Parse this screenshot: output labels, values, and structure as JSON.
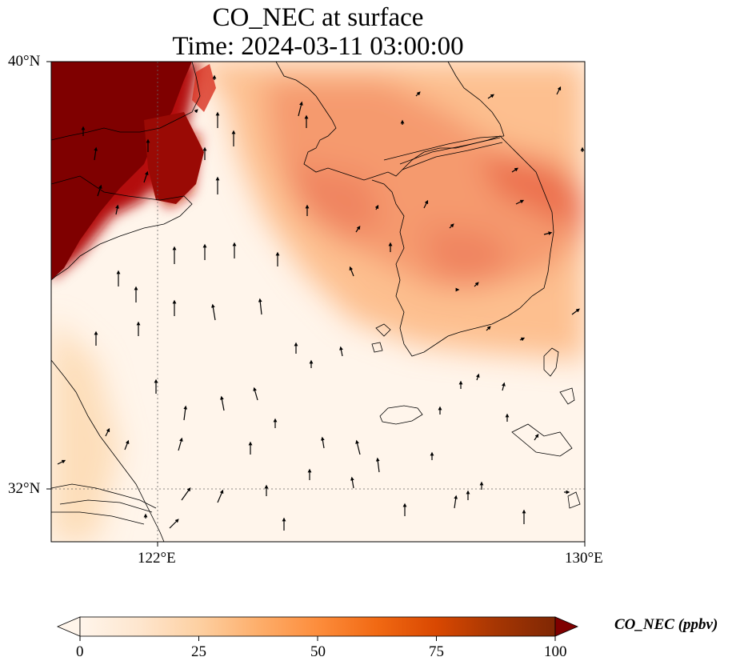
{
  "title": {
    "line1": "CO_NEC at surface",
    "line2": "Time: 2024-03-11 03:00:00"
  },
  "axes": {
    "y_ticks": [
      "40°N",
      "32°N"
    ],
    "x_ticks": [
      "122°E",
      "130°E"
    ]
  },
  "colorbar": {
    "label": "CO_NEC (ppbv)",
    "ticks": [
      "0",
      "25",
      "50",
      "75",
      "100"
    ],
    "min": 0,
    "max": 100,
    "extend": "both",
    "colormap_stops": [
      "#fff5eb",
      "#fee6ce",
      "#fdd0a2",
      "#fdae6b",
      "#fd8d3c",
      "#f16913",
      "#d94801",
      "#a63603",
      "#7f2704"
    ]
  },
  "map": {
    "lon_range": [
      120,
      130
    ],
    "lat_range": [
      31,
      40
    ],
    "gridlines": "dotted at 122°E and 32°N",
    "features": [
      "coastlines",
      "wind-vectors"
    ]
  }
}
